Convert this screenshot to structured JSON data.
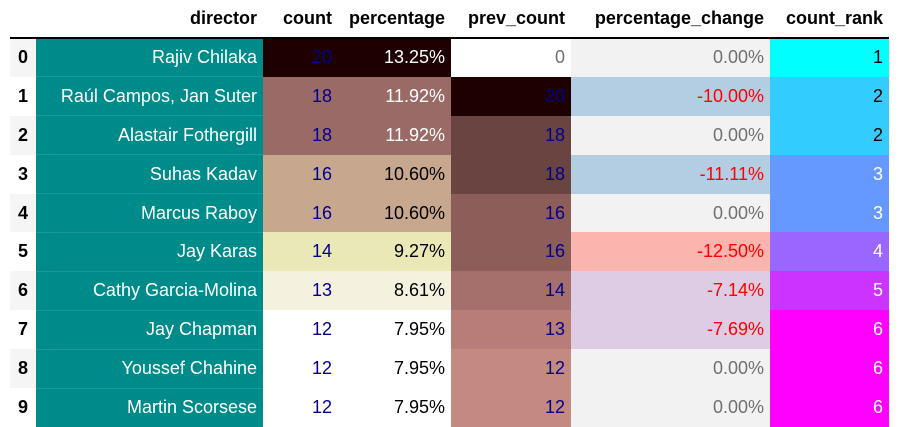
{
  "table": {
    "columns": [
      "",
      "director",
      "count",
      "percentage",
      "prev_count",
      "percentage_change",
      "count_rank"
    ],
    "rows": [
      {
        "index": "0",
        "director": "Rajiv Chilaka",
        "count": "20",
        "percentage": "13.25%",
        "prev_count": "0",
        "percentage_change": "0.00%",
        "count_rank": "1"
      },
      {
        "index": "1",
        "director": "Raúl Campos, Jan Suter",
        "count": "18",
        "percentage": "11.92%",
        "prev_count": "20",
        "percentage_change": "-10.00%",
        "count_rank": "2"
      },
      {
        "index": "2",
        "director": "Alastair Fothergill",
        "count": "18",
        "percentage": "11.92%",
        "prev_count": "18",
        "percentage_change": "0.00%",
        "count_rank": "2"
      },
      {
        "index": "3",
        "director": "Suhas Kadav",
        "count": "16",
        "percentage": "10.60%",
        "prev_count": "18",
        "percentage_change": "-11.11%",
        "count_rank": "3"
      },
      {
        "index": "4",
        "director": "Marcus Raboy",
        "count": "16",
        "percentage": "10.60%",
        "prev_count": "16",
        "percentage_change": "0.00%",
        "count_rank": "3"
      },
      {
        "index": "5",
        "director": "Jay Karas",
        "count": "14",
        "percentage": "9.27%",
        "prev_count": "16",
        "percentage_change": "-12.50%",
        "count_rank": "4"
      },
      {
        "index": "6",
        "director": "Cathy Garcia-Molina",
        "count": "13",
        "percentage": "8.61%",
        "prev_count": "14",
        "percentage_change": "-7.14%",
        "count_rank": "5"
      },
      {
        "index": "7",
        "director": "Jay Chapman",
        "count": "12",
        "percentage": "7.95%",
        "prev_count": "13",
        "percentage_change": "-7.69%",
        "count_rank": "6"
      },
      {
        "index": "8",
        "director": "Youssef Chahine",
        "count": "12",
        "percentage": "7.95%",
        "prev_count": "12",
        "percentage_change": "0.00%",
        "count_rank": "6"
      },
      {
        "index": "9",
        "director": "Martin Scorsese",
        "count": "12",
        "percentage": "7.95%",
        "prev_count": "12",
        "percentage_change": "0.00%",
        "count_rank": "6"
      }
    ]
  },
  "colors": {
    "director_bg": "#008b8b",
    "count_text": "#00008b",
    "negative_change_text": "#ff0000",
    "zero_change_text": "#707070",
    "count_bg": [
      "#1e0000",
      "#9a6a67",
      "#9a6a67",
      "#c8a78f",
      "#c8a78f",
      "#e9e8b6",
      "#f4f2de",
      "#ffffff",
      "#ffffff",
      "#ffffff"
    ],
    "percentage_bg": [
      "#1e0000",
      "#9a6a67",
      "#9a6a67",
      "#c8a78f",
      "#c8a78f",
      "#e9e8b6",
      "#f4f2de",
      "#ffffff",
      "#ffffff",
      "#ffffff"
    ],
    "prev_count_bg": [
      "#ffffff",
      "#1e0000",
      "#6a4440",
      "#6a4440",
      "#8d5d59",
      "#8d5d59",
      "#a56f6c",
      "#b97d79",
      "#c48a82",
      "#c48a82"
    ],
    "percentage_change_bg": [
      "#f2f2f2",
      "#b3cde3",
      "#f2f2f2",
      "#b3cde3",
      "#f2f2f2",
      "#fbb4ae",
      "#decbe4",
      "#decbe4",
      "#f2f2f2",
      "#f2f2f2"
    ],
    "count_rank_bg": [
      "#00ffff",
      "#33ccff",
      "#33ccff",
      "#6699ff",
      "#6699ff",
      "#9966ff",
      "#cc33ff",
      "#ff00ff",
      "#ff00ff",
      "#ff00ff"
    ]
  }
}
